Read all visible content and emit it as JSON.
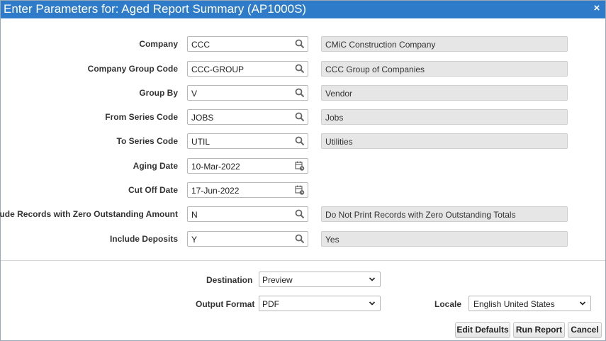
{
  "dialog": {
    "title": "Enter Parameters for: Aged Report Summary (AP1000S)",
    "close_glyph": "×"
  },
  "params": [
    {
      "label": "Company",
      "value": "CCC",
      "description": "CMiC Construction Company",
      "type": "lov",
      "icon": "search-icon"
    },
    {
      "label": "Company Group Code",
      "value": "CCC-GROUP",
      "description": "CCC Group of Companies",
      "type": "lov",
      "icon": "search-icon"
    },
    {
      "label": "Group By",
      "value": "V",
      "description": "Vendor",
      "type": "lov",
      "icon": "search-icon"
    },
    {
      "label": "From Series Code",
      "value": "JOBS",
      "description": "Jobs",
      "type": "lov",
      "icon": "search-icon"
    },
    {
      "label": "To Series Code",
      "value": "UTIL",
      "description": "Utilities",
      "type": "lov",
      "icon": "search-icon"
    },
    {
      "label": "Aging Date",
      "value": "10-Mar-2022",
      "type": "date",
      "icon": "calendar-icon"
    },
    {
      "label": "Cut Off Date",
      "value": "17-Jun-2022",
      "type": "date",
      "icon": "calendar-icon"
    },
    {
      "label": "Include Records with Zero Outstanding Amount",
      "value": "N",
      "description": "Do Not Print Records with Zero Outstanding Totals",
      "type": "lov",
      "icon": "search-icon"
    },
    {
      "label": "Include Deposits",
      "value": "Y",
      "description": "Yes",
      "type": "lov",
      "icon": "search-icon"
    }
  ],
  "output": {
    "destination_label": "Destination",
    "destination_value": "Preview",
    "format_label": "Output Format",
    "format_value": "PDF",
    "locale_label": "Locale",
    "locale_value": "English United States"
  },
  "buttons": {
    "edit_defaults": "Edit Defaults",
    "run_report": "Run Report",
    "cancel": "Cancel"
  },
  "colors": {
    "titlebar": "#2e7bc9",
    "readonly_field": "#e6e6e6"
  }
}
